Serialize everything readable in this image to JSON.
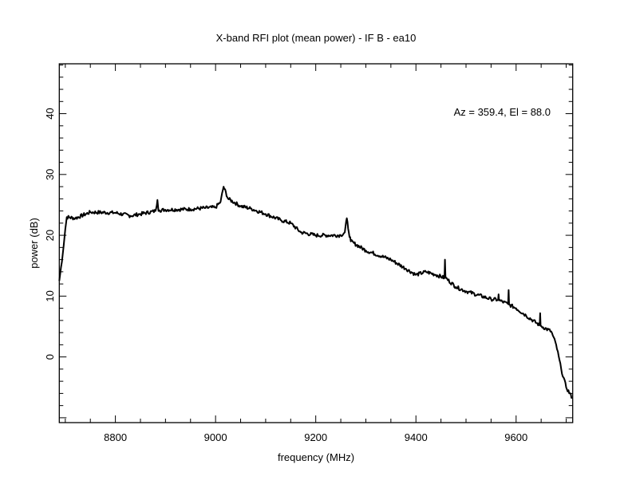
{
  "chart_data": {
    "type": "line",
    "title": "X-band RFI plot (mean power) - IF B - ea10",
    "xlabel": "frequency (MHz)",
    "ylabel": "power (dB)",
    "annotation": "Az = 359.4, El = 88.0",
    "xlim": [
      8688,
      9713
    ],
    "ylim": [
      -10.8,
      48.2
    ],
    "xticks": [
      8800,
      9000,
      9200,
      9400,
      9600
    ],
    "xtick_labels": [
      "8800",
      "9000",
      "9200",
      "9400",
      "9600"
    ],
    "yticks": [
      0,
      10,
      20,
      30,
      40
    ],
    "ytick_labels": [
      "0",
      "10",
      "20",
      "30",
      "40"
    ],
    "grid": false,
    "line_color": "#000000",
    "series": [
      {
        "name": "mean power",
        "x": [
          8688,
          8695,
          8700,
          8703,
          8720,
          8750,
          8800,
          8830,
          8850,
          8880,
          8884,
          8886,
          8888,
          8900,
          8950,
          8980,
          9000,
          9010,
          9016,
          9025,
          9050,
          9070,
          9100,
          9130,
          9150,
          9170,
          9200,
          9250,
          9258,
          9262,
          9266,
          9270,
          9300,
          9350,
          9380,
          9400,
          9420,
          9440,
          9457,
          9458,
          9459,
          9480,
          9500,
          9550,
          9564,
          9565,
          9566,
          9584,
          9585,
          9586,
          9600,
          9620,
          9647,
          9648,
          9649,
          9670,
          9680,
          9690,
          9700,
          9712
        ],
        "y": [
          12.5,
          17,
          21,
          23,
          22.8,
          23.8,
          23.7,
          23.2,
          23.5,
          24,
          25.8,
          24,
          24.1,
          24.2,
          24.3,
          24.5,
          24.6,
          25.5,
          28,
          26,
          24.8,
          24.4,
          23.5,
          22.5,
          22,
          20.5,
          20,
          20,
          20.5,
          22.8,
          20.5,
          19,
          17.5,
          16,
          14.5,
          13.5,
          14,
          13.5,
          13,
          16,
          13,
          11.5,
          10.8,
          9.5,
          9.4,
          10.3,
          9.3,
          8.7,
          11,
          8.6,
          8,
          6.8,
          5.2,
          7.2,
          5.1,
          4.2,
          2,
          -2,
          -5,
          -6.7
        ]
      }
    ]
  }
}
